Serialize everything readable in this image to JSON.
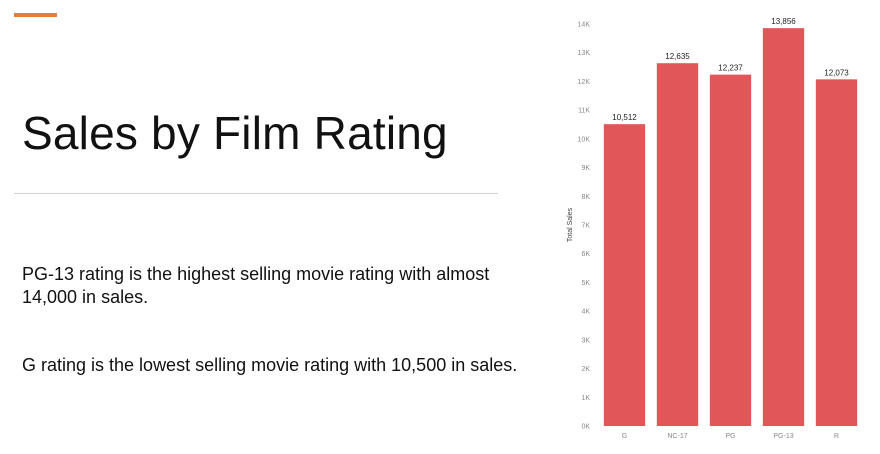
{
  "slide": {
    "title": "Sales by Film Rating",
    "paragraphs": [
      "PG-13 rating is the highest selling movie rating with almost 14,000 in sales.",
      "G rating is the lowest selling movie rating with 10,500 in sales."
    ],
    "accent_color": "#ED7D31"
  },
  "chart_data": {
    "type": "bar",
    "categories": [
      "G",
      "NC-17",
      "PG",
      "PG-13",
      "R"
    ],
    "values": [
      10512,
      12635,
      12237,
      13856,
      12073
    ],
    "data_labels": [
      "10,512",
      "12,635",
      "12,237",
      "13,856",
      "12,073"
    ],
    "title": "",
    "xlabel": "",
    "ylabel": "Total Sales",
    "ylim": [
      0,
      14000
    ],
    "yticks": [
      0,
      1000,
      2000,
      3000,
      4000,
      5000,
      6000,
      7000,
      8000,
      9000,
      10000,
      11000,
      12000,
      13000,
      14000
    ],
    "ytick_labels": [
      "0K",
      "1K",
      "2K",
      "3K",
      "4K",
      "5K",
      "6K",
      "7K",
      "8K",
      "9K",
      "10K",
      "11K",
      "12K",
      "13K",
      "14K"
    ],
    "bar_color": "#E15759",
    "grid": false
  }
}
